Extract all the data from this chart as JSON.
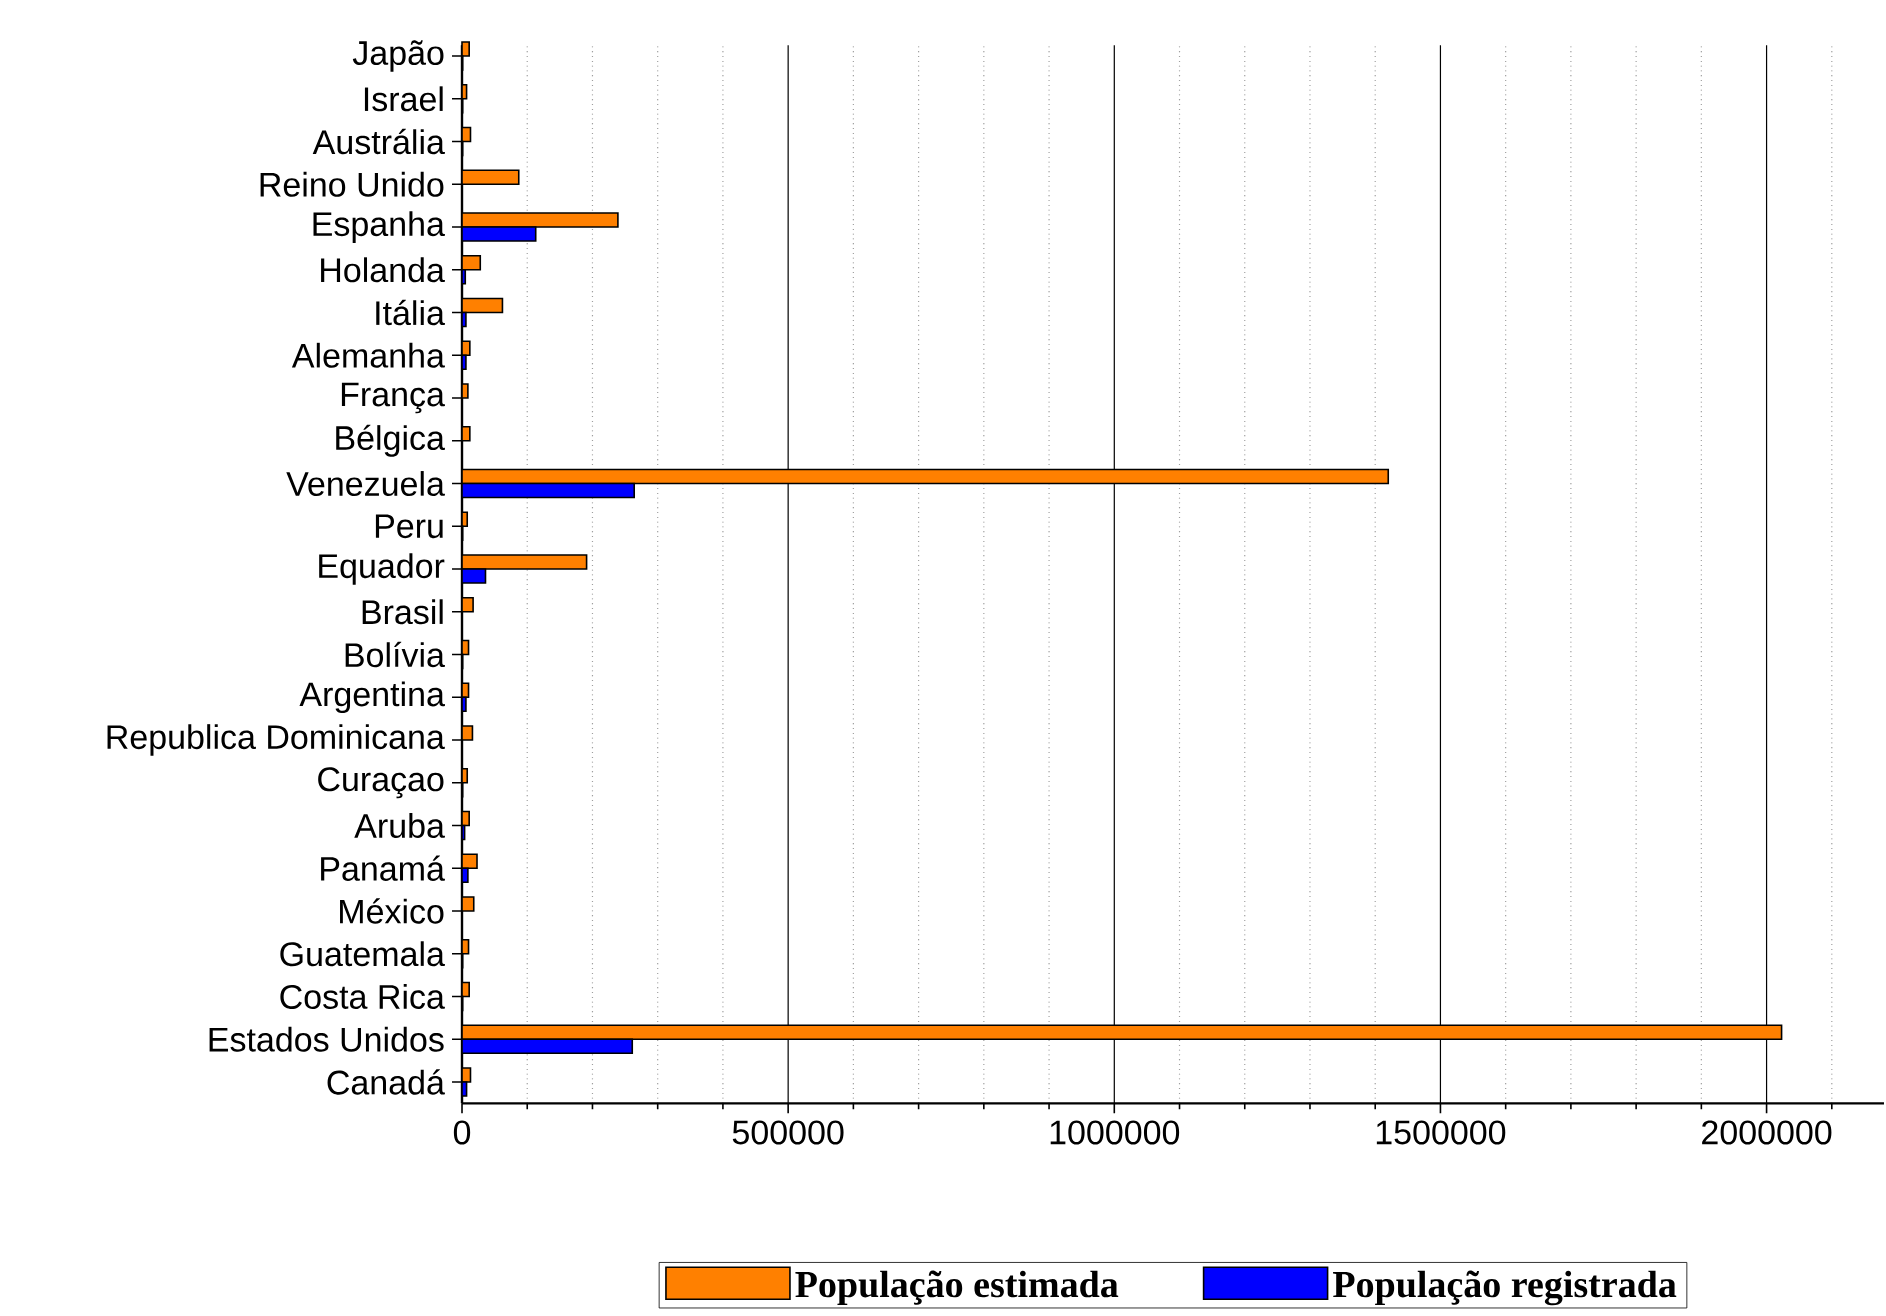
{
  "chart_data": {
    "type": "bar",
    "orientation": "horizontal",
    "categories": [
      "Japão",
      "Israel",
      "Austrália",
      "Reino Unido",
      "Espanha",
      "Holanda",
      "Itália",
      "Alemanha",
      "França",
      "Bélgica",
      "Venezuela",
      "Peru",
      "Equador",
      "Brasil",
      "Bolívia",
      "Argentina",
      "Republica Dominicana",
      "Curaçao",
      "Aruba",
      "Panamá",
      "México",
      "Guatemala",
      "Costa Rica",
      "Estados Unidos",
      "Canadá"
    ],
    "series": [
      {
        "name": "População estimada",
        "color": "#ff8000",
        "values": [
          11000,
          7000,
          13000,
          87000,
          239000,
          28000,
          62000,
          12000,
          9000,
          12000,
          1420000,
          8000,
          191000,
          17000,
          10000,
          10000,
          16000,
          8000,
          11000,
          23000,
          18000,
          10000,
          11000,
          2023000,
          13000
        ]
      },
      {
        "name": "População registrada",
        "color": "#0000ff",
        "values": [
          1000,
          1000,
          1000,
          null,
          113000,
          5000,
          6000,
          6000,
          null,
          null,
          264000,
          1000,
          36000,
          null,
          1000,
          6000,
          null,
          1000,
          4000,
          9000,
          null,
          1000,
          1000,
          261000,
          7000
        ]
      }
    ],
    "xlim": [
      0,
      2180000
    ],
    "xticks": [
      0,
      {
        "value": 100000,
        "label": null
      },
      {
        "value": 200000,
        "label": null
      },
      {
        "value": 300000,
        "label": null
      },
      {
        "value": 400000,
        "label": null
      },
      500000,
      {
        "value": 600000,
        "label": null
      },
      {
        "value": 700000,
        "label": null
      },
      {
        "value": 800000,
        "label": null
      },
      {
        "value": 900000,
        "label": null
      },
      1000000,
      {
        "value": 1100000,
        "label": null
      },
      {
        "value": 1200000,
        "label": null
      },
      {
        "value": 1300000,
        "label": null
      },
      {
        "value": 1400000,
        "label": null
      },
      1500000,
      {
        "value": 1600000,
        "label": null
      },
      {
        "value": 1700000,
        "label": null
      },
      {
        "value": 1800000,
        "label": null
      },
      {
        "value": 1900000,
        "label": null
      },
      2000000,
      {
        "value": 2100000,
        "label": null
      }
    ],
    "grid": "x",
    "legend": "bottom"
  }
}
